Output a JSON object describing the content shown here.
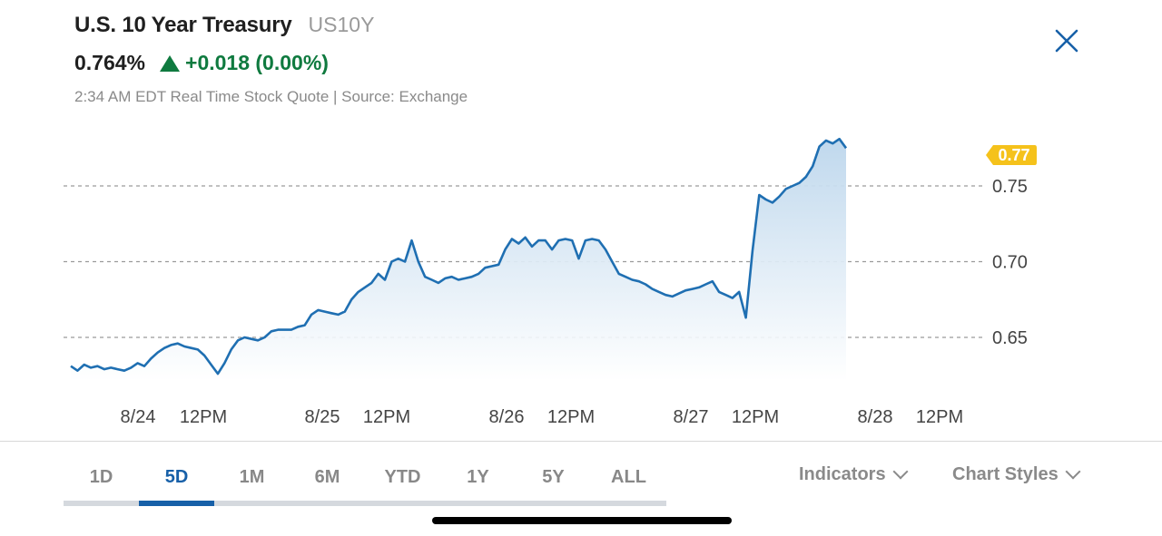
{
  "header": {
    "title": "U.S. 10 Year Treasury",
    "symbol": "US10Y",
    "price": "0.764%",
    "change": "+0.018 (0.00%)",
    "meta": "2:34 AM EDT Real Time Stock Quote | Source: Exchange"
  },
  "icons": {
    "close": "close-icon",
    "change_direction": "up-triangle-icon"
  },
  "colors": {
    "line": "#1f6fb2",
    "area": "#cfe1f1",
    "up": "#0f7a3f",
    "badge": "#f5c21b",
    "accent": "#1760a8"
  },
  "chart_data": {
    "type": "area",
    "last_value_label": "0.77",
    "ylim": [
      0.6,
      0.79
    ],
    "yticks": [
      {
        "value": 0.65,
        "label": "0.65"
      },
      {
        "value": 0.7,
        "label": "0.70"
      },
      {
        "value": 0.75,
        "label": "0.75"
      }
    ],
    "grid": "dashed horizontal at ticks",
    "xticks": [
      "8/24",
      "12PM",
      "8/25",
      "12PM",
      "8/26",
      "12PM",
      "8/27",
      "12PM",
      "8/28",
      "12PM"
    ],
    "series": [
      {
        "values": [
          0.631,
          0.628,
          0.632,
          0.63,
          0.631,
          0.629,
          0.63,
          0.629,
          0.628,
          0.63,
          0.633,
          0.631,
          0.636,
          0.64,
          0.643,
          0.645,
          0.646,
          0.644,
          0.643,
          0.642,
          0.638,
          0.632,
          0.626,
          0.633,
          0.642,
          0.648,
          0.65,
          0.649,
          0.648,
          0.65,
          0.654,
          0.655,
          0.655,
          0.655,
          0.657,
          0.658,
          0.665,
          0.668,
          0.667,
          0.666,
          0.665,
          0.667,
          0.675,
          0.68,
          0.683,
          0.686,
          0.692,
          0.688,
          0.7,
          0.702,
          0.7,
          0.714,
          0.7,
          0.69,
          0.688,
          0.686,
          0.689,
          0.69,
          0.688,
          0.689,
          0.69,
          0.692,
          0.696,
          0.697,
          0.698,
          0.708,
          0.715,
          0.712,
          0.716,
          0.71,
          0.714,
          0.714,
          0.708,
          0.714,
          0.715,
          0.714,
          0.702,
          0.714,
          0.715,
          0.714,
          0.708,
          0.7,
          0.692,
          0.69,
          0.688,
          0.687,
          0.685,
          0.682,
          0.68,
          0.678,
          0.677,
          0.679,
          0.681,
          0.682,
          0.683,
          0.685,
          0.687,
          0.68,
          0.678,
          0.676,
          0.68,
          0.663,
          0.707,
          0.744,
          0.741,
          0.739,
          0.743,
          0.748,
          0.75,
          0.752,
          0.756,
          0.763,
          0.776,
          0.78,
          0.778,
          0.781,
          0.775
        ]
      }
    ]
  },
  "ranges": {
    "items": [
      "1D",
      "5D",
      "1M",
      "6M",
      "YTD",
      "1Y",
      "5Y",
      "ALL"
    ],
    "active_index": 1
  },
  "tools": {
    "indicators": "Indicators",
    "chart_styles": "Chart Styles"
  }
}
